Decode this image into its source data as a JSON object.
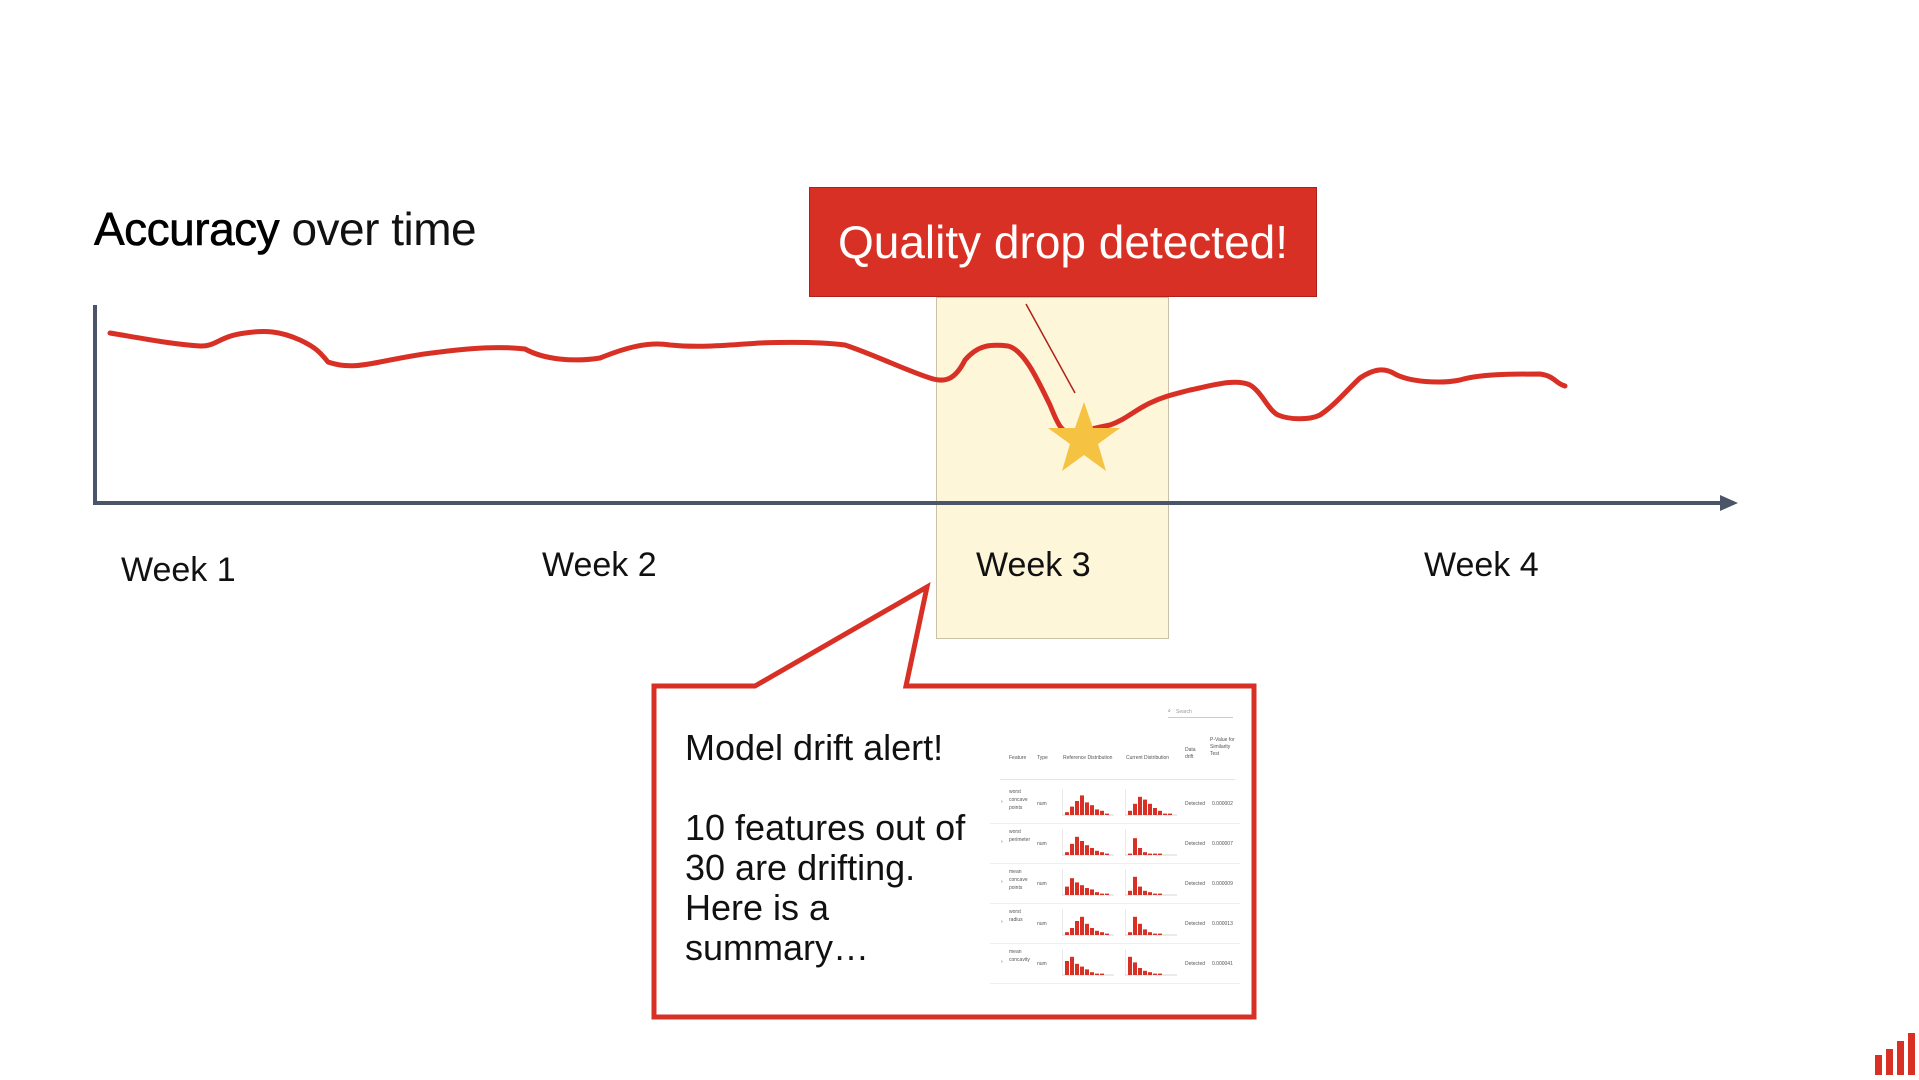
{
  "chart": {
    "title_bold": "Accuracy",
    "title_rest": " over time",
    "weeks": [
      "Week 1",
      "Week 2",
      "Week 3",
      "Week 4"
    ],
    "line_color": "#d93025",
    "axis_color": "#4a5568",
    "highlight_color": "#fdf6d8",
    "star_color": "#f5c242"
  },
  "alert": {
    "banner": "Quality drop detected!",
    "callout_heading": "Model drift alert!",
    "callout_body": [
      "10 features out of",
      "30 are drifting.",
      "Here is a",
      "summary…"
    ]
  },
  "summary_table": {
    "search_placeholder": "Search",
    "headers": [
      "Feature",
      "Type",
      "Reference Distribution",
      "Current Distribution",
      "Data drift",
      "P-Value for Similarity Test"
    ],
    "rows": [
      {
        "feature": "worst concave points",
        "type": "num",
        "drift": "Detected",
        "p": "0.000002"
      },
      {
        "feature": "worst perimeter",
        "type": "num",
        "drift": "Detected",
        "p": "0.000007"
      },
      {
        "feature": "mean concave points",
        "type": "num",
        "drift": "Detected",
        "p": "0.000009"
      },
      {
        "feature": "worst radius",
        "type": "num",
        "drift": "Detected",
        "p": "0.000013"
      },
      {
        "feature": "mean concavity",
        "type": "num",
        "drift": "Detected",
        "p": "0.000041"
      }
    ]
  }
}
